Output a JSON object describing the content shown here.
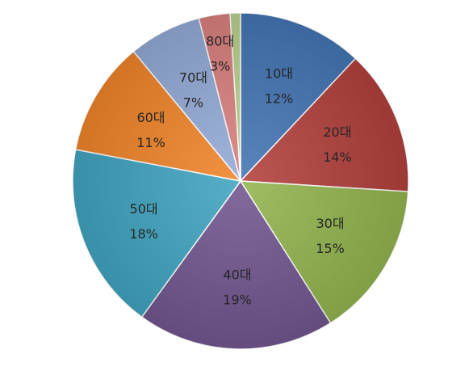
{
  "chart_data": {
    "type": "pie",
    "categories": [
      "10대",
      "20대",
      "30대",
      "40대",
      "50대",
      "60대",
      "70대",
      "80대",
      null
    ],
    "values": [
      12,
      14,
      15,
      19,
      18,
      11,
      7,
      3,
      1
    ],
    "value_labels": [
      "12%",
      "14%",
      "15%",
      "19%",
      "18%",
      "11%",
      "7%",
      "3%",
      null
    ],
    "colors": [
      "#4375b4",
      "#b2403c",
      "#92b44e",
      "#71568f",
      "#3fa4bf",
      "#ef8429",
      "#93aad6",
      "#d8807e",
      "#b9d08e"
    ],
    "start_angle": 0,
    "direction": "clockwise"
  }
}
